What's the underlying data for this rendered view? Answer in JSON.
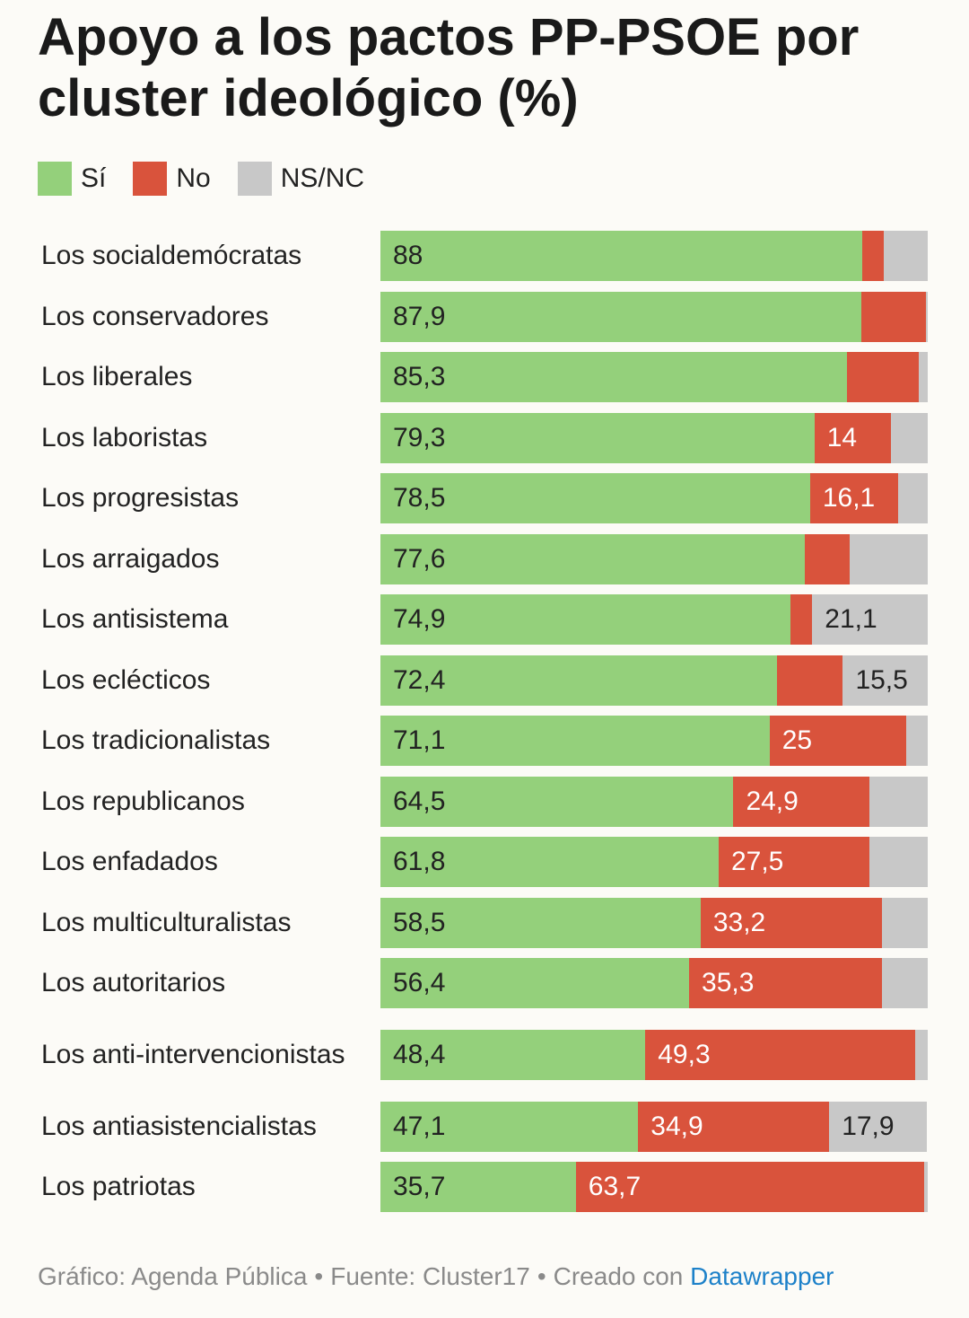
{
  "title": "Apoyo a los pactos PP-PSOE por cluster ideológico (%)",
  "legend": [
    {
      "label": "Sí",
      "color": "#94d07b"
    },
    {
      "label": "No",
      "color": "#d9533c"
    },
    {
      "label": "NS/NC",
      "color": "#c8c8c8"
    }
  ],
  "footer": {
    "credit": "Gráfico: Agenda Pública",
    "separator": "•",
    "source": "Fuente: Cluster17",
    "created": "Creado con",
    "tool": "Datawrapper"
  },
  "chart_data": {
    "type": "bar",
    "orientation": "horizontal",
    "stacked": true,
    "title": "Apoyo a los pactos PP-PSOE por cluster ideológico (%)",
    "categories": [
      "Los socialdemócratas",
      "Los conservadores",
      "Los liberales",
      "Los laboristas",
      "Los progresistas",
      "Los arraigados",
      "Los antisistema",
      "Los eclécticos",
      "Los tradicionalistas",
      "Los republicanos",
      "Los enfadados",
      "Los multiculturalistas",
      "Los autoritarios",
      "Los anti-intervencionistas",
      "Los antiasistencialistas",
      "Los patriotas"
    ],
    "series": [
      {
        "name": "Sí",
        "color": "#94d07b",
        "values": [
          88,
          87.9,
          85.3,
          79.3,
          78.5,
          77.6,
          74.9,
          72.4,
          71.1,
          64.5,
          61.8,
          58.5,
          56.4,
          48.4,
          47.1,
          35.7
        ]
      },
      {
        "name": "No",
        "color": "#d9533c",
        "values": [
          3.9,
          11.7,
          13.1,
          14,
          16.1,
          8.2,
          4,
          12.1,
          25,
          24.9,
          27.5,
          33.2,
          35.3,
          49.3,
          34.9,
          63.7
        ]
      },
      {
        "name": "NS/NC",
        "color": "#c8c8c8",
        "values": [
          8.1,
          0.4,
          1.6,
          6.7,
          5.4,
          14.2,
          21.1,
          15.5,
          3.9,
          10.6,
          10.7,
          8.3,
          8.3,
          2.3,
          17.9,
          0.6
        ]
      }
    ],
    "value_labels": [
      [
        "88",
        "",
        ""
      ],
      [
        "87,9",
        "",
        ""
      ],
      [
        "85,3",
        "",
        ""
      ],
      [
        "79,3",
        "14",
        ""
      ],
      [
        "78,5",
        "16,1",
        ""
      ],
      [
        "77,6",
        "",
        ""
      ],
      [
        "74,9",
        "",
        "21,1"
      ],
      [
        "72,4",
        "",
        "15,5"
      ],
      [
        "71,1",
        "25",
        ""
      ],
      [
        "64,5",
        "24,9",
        ""
      ],
      [
        "61,8",
        "27,5",
        ""
      ],
      [
        "58,5",
        "33,2",
        ""
      ],
      [
        "56,4",
        "35,3",
        ""
      ],
      [
        "48,4",
        "49,3",
        ""
      ],
      [
        "47,1",
        "34,9",
        "17,9"
      ],
      [
        "35,7",
        "63,7",
        ""
      ]
    ],
    "label_colors": [
      "#222222",
      "#ffffff",
      "#222222"
    ],
    "xlim": [
      0,
      100
    ],
    "legend_position": "top-left",
    "grid": false
  }
}
